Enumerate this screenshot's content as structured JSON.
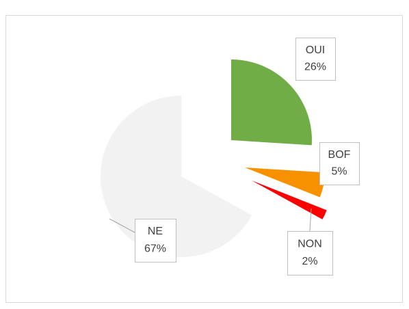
{
  "chart_data": {
    "type": "pie",
    "categories": [
      "OUI",
      "BOF",
      "NON",
      "NE"
    ],
    "values": [
      26,
      5,
      2,
      67
    ],
    "value_labels": [
      "26%",
      "5%",
      "2%",
      "67%"
    ],
    "colors": [
      "#70ad47",
      "#f79100",
      "#ff0000",
      "#f2f2f2"
    ]
  }
}
